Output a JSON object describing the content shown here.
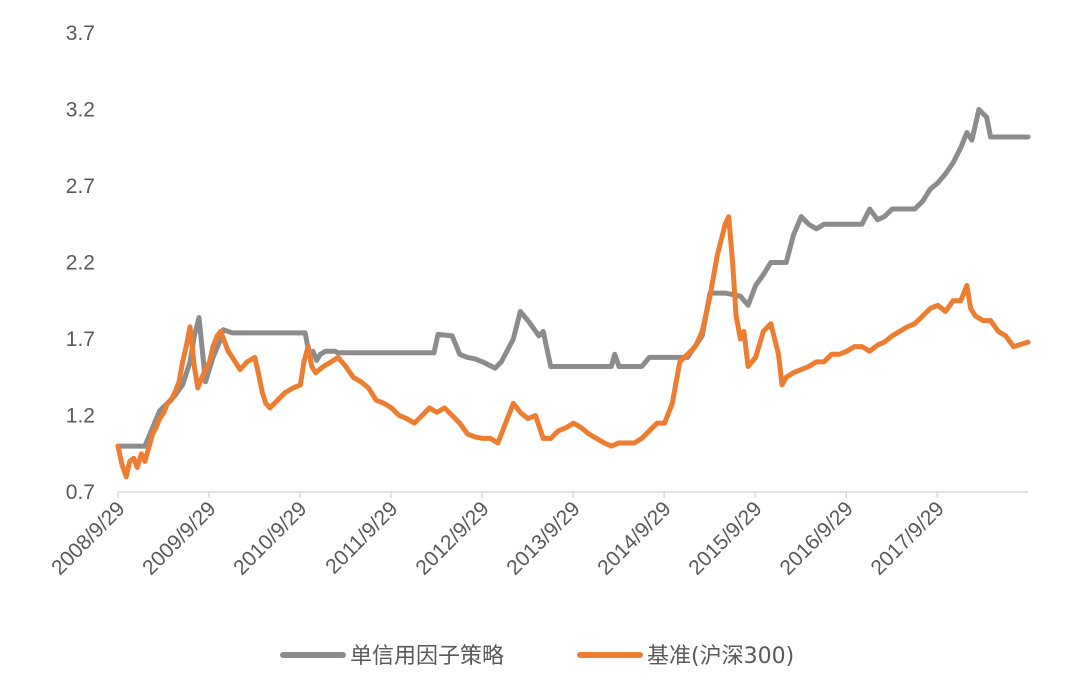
{
  "chart_data": {
    "type": "line",
    "title": "",
    "xlabel": "",
    "ylabel": "",
    "ylim": [
      0.7,
      3.7
    ],
    "yticks": [
      "0.7",
      "1.2",
      "1.7",
      "2.2",
      "2.7",
      "3.2",
      "3.7"
    ],
    "xticks": [
      "2008/9/29",
      "2009/9/29",
      "2010/9/29",
      "2011/9/29",
      "2012/9/29",
      "2013/9/29",
      "2014/9/29",
      "2015/9/29",
      "2016/9/29",
      "2017/9/29"
    ],
    "x_range": [
      "2008/9/29",
      "2018/9/28"
    ],
    "grid": false,
    "legend_position": "bottom",
    "series": [
      {
        "name": "单信用因子策略",
        "color": "#8c8c8c",
        "x": [
          "2008/9/29",
          "2008/12/15",
          "2009/1/15",
          "2009/2/15",
          "2009/3/15",
          "2009/4/15",
          "2009/5/15",
          "2009/6/15",
          "2009/7/15",
          "2009/8/1",
          "2009/8/20",
          "2009/9/15",
          "2009/10/15",
          "2009/11/10",
          "2009/11/25",
          "2010/1/1",
          "2010/6/1",
          "2010/10/20",
          "2010/11/5",
          "2010/11/20",
          "2010/12/5",
          "2010/12/20",
          "2011/1/10",
          "2011/2/15",
          "2011/3/1",
          "2011/4/1",
          "2011/6/1",
          "2011/10/1",
          "2012/2/1",
          "2012/3/20",
          "2012/4/5",
          "2012/6/1",
          "2012/7/1",
          "2012/8/1",
          "2012/9/1",
          "2012/10/1",
          "2012/11/20",
          "2012/12/15",
          "2013/2/1",
          "2013/3/1",
          "2013/4/1",
          "2013/5/15",
          "2013/6/1",
          "2013/7/1",
          "2013/10/1",
          "2014/3/1",
          "2014/3/15",
          "2014/4/1",
          "2014/7/1",
          "2014/8/1",
          "2014/9/1",
          "2014/12/1",
          "2015/1/1",
          "2015/3/1",
          "2015/4/1",
          "2015/5/1",
          "2015/6/1",
          "2015/8/1",
          "2015/9/1",
          "2015/10/1",
          "2015/11/1",
          "2015/12/1",
          "2016/1/1",
          "2016/2/1",
          "2016/3/1",
          "2016/4/1",
          "2016/5/1",
          "2016/6/1",
          "2016/7/1",
          "2016/8/1",
          "2016/9/1",
          "2016/12/1",
          "2017/1/1",
          "2017/2/1",
          "2017/3/1",
          "2017/4/1",
          "2017/5/1",
          "2017/6/1",
          "2017/7/1",
          "2017/8/1",
          "2017/9/1",
          "2017/10/1",
          "2017/11/1",
          "2017/12/1",
          "2018/1/1",
          "2018/1/26",
          "2018/2/15",
          "2018/3/15",
          "2018/4/15",
          "2018/5/1",
          "2018/6/1",
          "2018/9/28"
        ],
        "y": [
          1.0,
          1.0,
          1.0,
          1.12,
          1.23,
          1.28,
          1.33,
          1.4,
          1.55,
          1.72,
          1.84,
          1.42,
          1.58,
          1.68,
          1.76,
          1.74,
          1.74,
          1.74,
          1.6,
          1.62,
          1.56,
          1.6,
          1.62,
          1.62,
          1.61,
          1.61,
          1.61,
          1.61,
          1.61,
          1.61,
          1.73,
          1.72,
          1.6,
          1.58,
          1.57,
          1.55,
          1.51,
          1.55,
          1.7,
          1.88,
          1.82,
          1.72,
          1.75,
          1.52,
          1.52,
          1.52,
          1.6,
          1.52,
          1.52,
          1.58,
          1.58,
          1.58,
          1.58,
          1.72,
          2.0,
          2.0,
          2.0,
          1.98,
          1.92,
          2.05,
          2.12,
          2.2,
          2.2,
          2.2,
          2.38,
          2.5,
          2.45,
          2.42,
          2.45,
          2.45,
          2.45,
          2.45,
          2.55,
          2.48,
          2.5,
          2.55,
          2.55,
          2.55,
          2.55,
          2.6,
          2.68,
          2.72,
          2.78,
          2.85,
          2.95,
          3.05,
          3.0,
          3.2,
          3.15,
          3.02,
          3.02,
          3.02
        ]
      },
      {
        "name": "基准(沪深300)",
        "color": "#ed7d31",
        "x": [
          "2008/9/29",
          "2008/10/15",
          "2008/11/1",
          "2008/11/15",
          "2008/12/1",
          "2008/12/15",
          "2009/1/1",
          "2009/1/15",
          "2009/2/1",
          "2009/2/15",
          "2009/3/1",
          "2009/3/15",
          "2009/4/1",
          "2009/4/15",
          "2009/5/1",
          "2009/5/15",
          "2009/6/1",
          "2009/6/15",
          "2009/7/1",
          "2009/7/15",
          "2009/8/1",
          "2009/8/15",
          "2009/9/1",
          "2009/9/15",
          "2009/10/1",
          "2009/10/15",
          "2009/11/1",
          "2009/11/15",
          "2009/12/1",
          "2009/12/15",
          "2010/1/1",
          "2010/2/1",
          "2010/3/1",
          "2010/4/1",
          "2010/4/15",
          "2010/5/1",
          "2010/5/15",
          "2010/6/1",
          "2010/7/1",
          "2010/8/1",
          "2010/9/1",
          "2010/10/1",
          "2010/10/15",
          "2010/11/1",
          "2010/11/15",
          "2010/12/1",
          "2011/1/1",
          "2011/2/1",
          "2011/3/1",
          "2011/4/1",
          "2011/5/1",
          "2011/6/1",
          "2011/7/1",
          "2011/8/1",
          "2011/9/1",
          "2011/10/1",
          "2011/11/1",
          "2011/12/1",
          "2012/1/1",
          "2012/2/1",
          "2012/3/1",
          "2012/4/1",
          "2012/5/1",
          "2012/6/1",
          "2012/7/1",
          "2012/8/1",
          "2012/9/1",
          "2012/10/1",
          "2012/11/1",
          "2012/12/1",
          "2013/1/1",
          "2013/2/1",
          "2013/3/1",
          "2013/4/1",
          "2013/5/1",
          "2013/6/1",
          "2013/7/1",
          "2013/8/1",
          "2013/9/1",
          "2013/10/1",
          "2013/11/1",
          "2013/12/1",
          "2014/1/1",
          "2014/2/1",
          "2014/3/1",
          "2014/4/1",
          "2014/5/1",
          "2014/6/1",
          "2014/7/1",
          "2014/8/1",
          "2014/9/1",
          "2014/10/1",
          "2014/11/1",
          "2014/12/1",
          "2015/1/1",
          "2015/2/1",
          "2015/3/1",
          "2015/4/1",
          "2015/5/1",
          "2015/6/1",
          "2015/6/15",
          "2015/7/1",
          "2015/7/15",
          "2015/8/1",
          "2015/8/15",
          "2015/9/1",
          "2015/10/1",
          "2015/11/1",
          "2015/12/1",
          "2016/1/1",
          "2016/1/15",
          "2016/2/1",
          "2016/3/1",
          "2016/4/1",
          "2016/5/1",
          "2016/6/1",
          "2016/7/1",
          "2016/8/1",
          "2016/9/1",
          "2016/10/1",
          "2016/11/1",
          "2016/12/1",
          "2017/1/1",
          "2017/2/1",
          "2017/3/1",
          "2017/4/1",
          "2017/5/1",
          "2017/6/1",
          "2017/7/1",
          "2017/8/1",
          "2017/9/1",
          "2017/10/1",
          "2017/11/1",
          "2017/12/1",
          "2018/1/1",
          "2018/1/26",
          "2018/2/10",
          "2018/3/1",
          "2018/4/1",
          "2018/5/1",
          "2018/6/1",
          "2018/7/1",
          "2018/8/1",
          "2018/9/28"
        ],
        "y": [
          1.0,
          0.88,
          0.8,
          0.9,
          0.92,
          0.86,
          0.95,
          0.9,
          1.0,
          1.08,
          1.12,
          1.18,
          1.22,
          1.28,
          1.3,
          1.35,
          1.42,
          1.55,
          1.66,
          1.78,
          1.52,
          1.38,
          1.45,
          1.5,
          1.55,
          1.65,
          1.72,
          1.75,
          1.68,
          1.62,
          1.58,
          1.5,
          1.55,
          1.58,
          1.48,
          1.35,
          1.28,
          1.25,
          1.3,
          1.35,
          1.38,
          1.4,
          1.55,
          1.65,
          1.52,
          1.48,
          1.52,
          1.55,
          1.58,
          1.52,
          1.45,
          1.42,
          1.38,
          1.3,
          1.28,
          1.25,
          1.2,
          1.18,
          1.15,
          1.2,
          1.25,
          1.22,
          1.25,
          1.2,
          1.15,
          1.08,
          1.06,
          1.05,
          1.05,
          1.02,
          1.15,
          1.28,
          1.22,
          1.18,
          1.2,
          1.05,
          1.05,
          1.1,
          1.12,
          1.15,
          1.12,
          1.08,
          1.05,
          1.02,
          1.0,
          1.02,
          1.02,
          1.02,
          1.05,
          1.1,
          1.15,
          1.15,
          1.28,
          1.55,
          1.6,
          1.65,
          1.75,
          1.98,
          2.25,
          2.45,
          2.5,
          2.2,
          1.85,
          1.7,
          1.75,
          1.52,
          1.58,
          1.75,
          1.8,
          1.6,
          1.4,
          1.45,
          1.48,
          1.5,
          1.52,
          1.55,
          1.55,
          1.6,
          1.6,
          1.62,
          1.65,
          1.65,
          1.62,
          1.66,
          1.68,
          1.72,
          1.75,
          1.78,
          1.8,
          1.85,
          1.9,
          1.92,
          1.88,
          1.95,
          1.95,
          2.05,
          1.9,
          1.85,
          1.82,
          1.82,
          1.75,
          1.72,
          1.65,
          1.68
        ]
      }
    ]
  }
}
